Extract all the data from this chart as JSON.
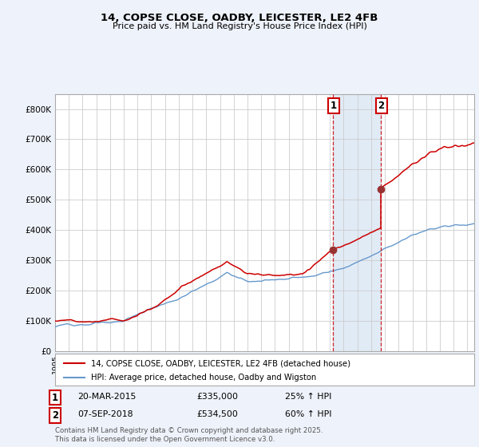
{
  "title1": "14, COPSE CLOSE, OADBY, LEICESTER, LE2 4FB",
  "title2": "Price paid vs. HM Land Registry's House Price Index (HPI)",
  "ylim": [
    0,
    850000
  ],
  "yticks": [
    0,
    100000,
    200000,
    300000,
    400000,
    500000,
    600000,
    700000,
    800000
  ],
  "ytick_labels": [
    "£0",
    "£100K",
    "£200K",
    "£300K",
    "£400K",
    "£500K",
    "£600K",
    "£700K",
    "£800K"
  ],
  "red_line_color": "#cc0000",
  "blue_line_color": "#6699cc",
  "bg_color": "#eef2fa",
  "plot_bg_color": "#ffffff",
  "grid_color": "#cccccc",
  "sale1_date": "20-MAR-2015",
  "sale1_price": 335000,
  "sale1_year": 2015.22,
  "sale1_pct": "25%",
  "sale2_date": "07-SEP-2018",
  "sale2_price": 534500,
  "sale2_year": 2018.69,
  "sale2_pct": "60%",
  "legend1": "14, COPSE CLOSE, OADBY, LEICESTER, LE2 4FB (detached house)",
  "legend2": "HPI: Average price, detached house, Oadby and Wigston",
  "footnote": "Contains HM Land Registry data © Crown copyright and database right 2025.\nThis data is licensed under the Open Government Licence v3.0.",
  "shade_color": "#dce8f5",
  "marker_color": "#993333",
  "xlim_start": 1995,
  "xlim_end": 2025.5
}
